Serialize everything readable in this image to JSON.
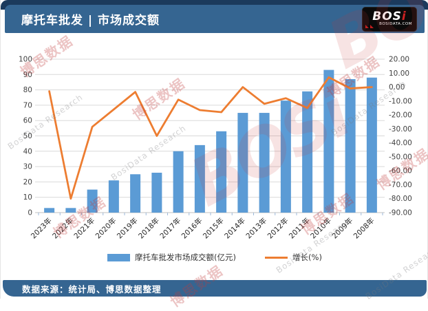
{
  "header": {
    "title": "摩托车批发 | 市场成交额",
    "logo": {
      "name": "BOSi",
      "domain": "BOSIDATA.COM"
    }
  },
  "footer": {
    "source": "数据来源：统计局、博思数据整理"
  },
  "watermark": {
    "cn": "博思数据",
    "en": "BosiData Research",
    "logo": "BOSi"
  },
  "colors": {
    "header_blue": "#356591",
    "navy": "#1b3a5c",
    "bar_blue": "#5b9bd5",
    "line_orange": "#ed7d31",
    "gridline": "#d9d9d9",
    "axis_text": "#404040"
  },
  "chart_data": {
    "type": "bar",
    "subtype": "bar+line combo",
    "categories": [
      "2023年",
      "2022年",
      "2021年",
      "2020年",
      "2019年",
      "2018年",
      "2017年",
      "2016年",
      "2015年",
      "2014年",
      "2013年",
      "2012年",
      "2011年",
      "2010年",
      "2009年",
      "2008年"
    ],
    "series": [
      {
        "name": "摩托车批发市场成交额(亿元)",
        "type": "bar",
        "axis": "left",
        "color": "#5b9bd5",
        "values": [
          3,
          3,
          15,
          21,
          25,
          26,
          40,
          44,
          53,
          65,
          65,
          73,
          79,
          93,
          87,
          88
        ]
      },
      {
        "name": "增长(%)",
        "type": "line",
        "axis": "right",
        "color": "#ed7d31",
        "values": [
          -3,
          -80,
          -28.5,
          -16,
          -3.5,
          -35,
          -9,
          -16.5,
          -18,
          0,
          -12,
          -8,
          -15,
          7,
          -1,
          0
        ]
      }
    ],
    "left_axis": {
      "min": 0,
      "max": 100,
      "step": 10,
      "decimals": 0
    },
    "right_axis": {
      "min": -90,
      "max": 20,
      "step": 10,
      "decimals": 2
    },
    "grid": true,
    "legend_position": "bottom",
    "x_label_rotation": -45
  }
}
